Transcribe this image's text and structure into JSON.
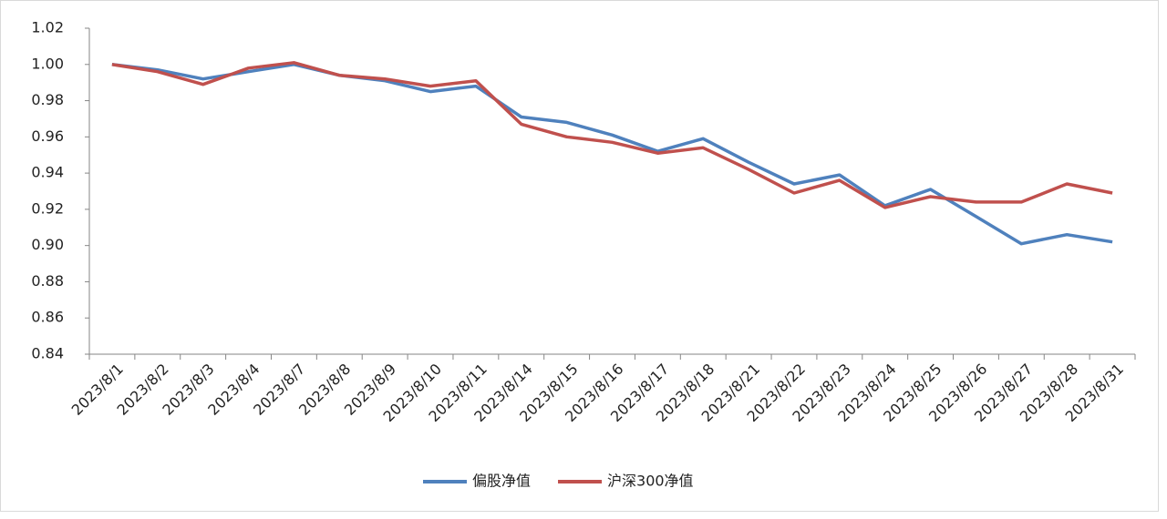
{
  "chart_data": {
    "type": "line",
    "categories": [
      "2023/8/1",
      "2023/8/2",
      "2023/8/3",
      "2023/8/4",
      "2023/8/7",
      "2023/8/8",
      "2023/8/9",
      "2023/8/10",
      "2023/8/11",
      "2023/8/14",
      "2023/8/15",
      "2023/8/16",
      "2023/8/17",
      "2023/8/18",
      "2023/8/21",
      "2023/8/22",
      "2023/8/23",
      "2023/8/24",
      "2023/8/25",
      "2023/8/26",
      "2023/8/27",
      "2023/8/28",
      "2023/8/31"
    ],
    "series": [
      {
        "name": "偏股净值",
        "color": "#4f81bd",
        "values": [
          1.0,
          0.997,
          0.992,
          0.996,
          1.0,
          0.994,
          0.991,
          0.985,
          0.988,
          0.971,
          0.968,
          0.961,
          0.952,
          0.959,
          0.946,
          0.934,
          0.939,
          0.922,
          0.931,
          0.916,
          0.901,
          0.906,
          0.902
        ]
      },
      {
        "name": "沪深300净值",
        "color": "#c0504d",
        "values": [
          1.0,
          0.996,
          0.989,
          0.998,
          1.001,
          0.994,
          0.992,
          0.988,
          0.991,
          0.967,
          0.96,
          0.957,
          0.951,
          0.954,
          0.942,
          0.929,
          0.936,
          0.921,
          0.927,
          0.924,
          0.924,
          0.934,
          0.929
        ]
      }
    ],
    "ylim": [
      0.84,
      1.02
    ],
    "yticks": [
      1.02,
      {
        "value": 1.0,
        "label": "1.00"
      },
      0.98,
      0.96,
      0.94,
      0.92,
      {
        "value": 0.9,
        "label": "0.90"
      },
      0.88,
      0.86,
      0.84
    ],
    "grid": false,
    "legend": "bottom"
  }
}
